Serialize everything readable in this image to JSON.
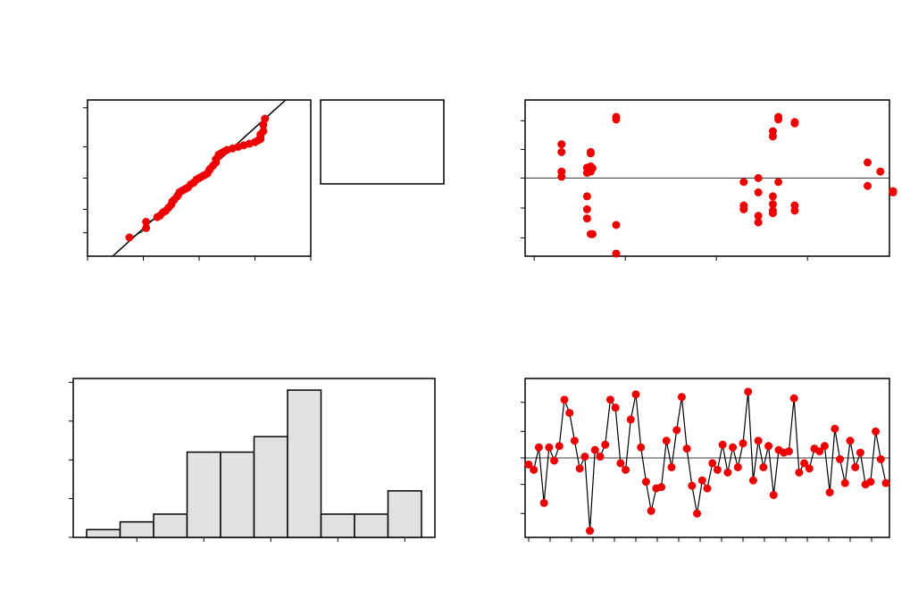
{
  "colors": {
    "points": "#ee0000",
    "bars": "#e1e1e1",
    "lines": "#000000"
  },
  "chart_data": [
    {
      "id": "probability-plot",
      "type": "scatter",
      "xlim": [
        0,
        4
      ],
      "ylim": [
        0,
        10
      ],
      "x_ticks": [
        0,
        1,
        2,
        3,
        4
      ],
      "y_ticks": [
        1.5,
        3,
        5,
        7,
        9.5
      ],
      "fit_line": [
        [
          0.45,
          0
        ],
        [
          3.55,
          10
        ]
      ],
      "points": [
        [
          0.75,
          1.2
        ],
        [
          1.05,
          1.8
        ],
        [
          1.05,
          2.2
        ],
        [
          1.25,
          2.5
        ],
        [
          1.3,
          2.6
        ],
        [
          1.35,
          2.8
        ],
        [
          1.4,
          2.9
        ],
        [
          1.45,
          3.1
        ],
        [
          1.5,
          3.3
        ],
        [
          1.52,
          3.5
        ],
        [
          1.55,
          3.6
        ],
        [
          1.6,
          3.8
        ],
        [
          1.62,
          3.9
        ],
        [
          1.65,
          4.1
        ],
        [
          1.7,
          4.2
        ],
        [
          1.75,
          4.3
        ],
        [
          1.8,
          4.4
        ],
        [
          1.85,
          4.6
        ],
        [
          1.9,
          4.7
        ],
        [
          1.95,
          4.9
        ],
        [
          2.0,
          5.0
        ],
        [
          2.05,
          5.1
        ],
        [
          2.1,
          5.2
        ],
        [
          2.15,
          5.3
        ],
        [
          2.18,
          5.5
        ],
        [
          2.2,
          5.6
        ],
        [
          2.25,
          5.8
        ],
        [
          2.3,
          6.0
        ],
        [
          2.3,
          6.2
        ],
        [
          2.35,
          6.4
        ],
        [
          2.35,
          6.5
        ],
        [
          2.4,
          6.6
        ],
        [
          2.45,
          6.7
        ],
        [
          2.5,
          6.8
        ],
        [
          2.6,
          6.9
        ],
        [
          2.7,
          7.0
        ],
        [
          2.8,
          7.1
        ],
        [
          2.9,
          7.2
        ],
        [
          3.0,
          7.3
        ],
        [
          3.05,
          7.4
        ],
        [
          3.1,
          7.5
        ],
        [
          3.1,
          7.7
        ],
        [
          3.1,
          7.8
        ],
        [
          3.15,
          8.0
        ],
        [
          3.15,
          8.4
        ],
        [
          3.18,
          8.8
        ]
      ]
    },
    {
      "id": "legend-box",
      "type": "table",
      "entries": []
    },
    {
      "id": "residuals-vs-fits",
      "type": "scatter",
      "xlim": [
        0,
        10
      ],
      "ylim": [
        -3,
        3
      ],
      "x_ticks": [
        0.25,
        2.75,
        5.25,
        7.75
      ],
      "y_ticks": [
        -2.3,
        -1.15,
        0,
        1.1,
        2.2
      ],
      "reference_y": 0,
      "points": [
        [
          1.0,
          1.3
        ],
        [
          1.0,
          1.0
        ],
        [
          1.0,
          0.25
        ],
        [
          1.0,
          0.05
        ],
        [
          1.7,
          0.4
        ],
        [
          1.7,
          0.2
        ],
        [
          1.75,
          0.35
        ],
        [
          1.8,
          0.45
        ],
        [
          1.8,
          0.25
        ],
        [
          1.85,
          0.38
        ],
        [
          1.8,
          1.0
        ],
        [
          1.8,
          0.95
        ],
        [
          1.7,
          -0.7
        ],
        [
          1.7,
          -1.2
        ],
        [
          1.7,
          -1.55
        ],
        [
          1.8,
          -2.15
        ],
        [
          1.85,
          -2.15
        ],
        [
          2.5,
          2.35
        ],
        [
          2.5,
          2.25
        ],
        [
          2.5,
          -1.8
        ],
        [
          2.5,
          -2.9
        ],
        [
          6.0,
          -0.15
        ],
        [
          6.0,
          -1.05
        ],
        [
          6.0,
          -1.2
        ],
        [
          6.4,
          0.0
        ],
        [
          6.4,
          -0.55
        ],
        [
          6.4,
          -1.45
        ],
        [
          6.4,
          -1.7
        ],
        [
          6.8,
          -0.7
        ],
        [
          6.8,
          -1.0
        ],
        [
          6.8,
          -1.25
        ],
        [
          6.8,
          -1.35
        ],
        [
          6.8,
          1.8
        ],
        [
          6.8,
          1.6
        ],
        [
          6.95,
          -0.15
        ],
        [
          6.95,
          2.35
        ],
        [
          6.95,
          2.25
        ],
        [
          7.4,
          2.15
        ],
        [
          7.4,
          2.1
        ],
        [
          7.4,
          -1.05
        ],
        [
          7.4,
          -1.25
        ],
        [
          9.4,
          0.6
        ],
        [
          9.4,
          -0.3
        ],
        [
          9.75,
          0.25
        ],
        [
          10.1,
          -0.5
        ],
        [
          10.1,
          -0.55
        ]
      ]
    },
    {
      "id": "histogram",
      "type": "bar",
      "bins": [
        [
          0.0,
          0.5,
          0.2
        ],
        [
          0.5,
          1.0,
          0.4
        ],
        [
          1.0,
          1.5,
          0.6
        ],
        [
          1.5,
          2.0,
          2.2
        ],
        [
          2.0,
          2.5,
          2.2
        ],
        [
          2.5,
          3.0,
          2.6
        ],
        [
          3.0,
          3.5,
          3.8
        ],
        [
          3.5,
          4.0,
          0.6
        ],
        [
          4.0,
          4.5,
          0.6
        ],
        [
          4.5,
          5.0,
          1.2
        ]
      ],
      "xlim": [
        -0.2,
        5.2
      ],
      "ylim": [
        0,
        4.1
      ],
      "x_ticks": [
        0.75,
        1.75,
        2.75,
        3.75,
        4.75
      ],
      "y_ticks": [
        0,
        1,
        2,
        3,
        4
      ]
    },
    {
      "id": "residuals-vs-order",
      "type": "line",
      "xlim": [
        -0.5,
        50.5
      ],
      "ylim": [
        -3,
        3
      ],
      "x_ticks": [
        0,
        3,
        6,
        9,
        12,
        15,
        18,
        21,
        24,
        27,
        30,
        33,
        36,
        39,
        42,
        45,
        48
      ],
      "y_ticks": [
        -2.1,
        -1.0,
        0,
        1.0,
        2.1
      ],
      "reference_y": 0,
      "values": [
        -0.25,
        -0.45,
        0.4,
        -1.7,
        0.4,
        -0.1,
        0.45,
        2.2,
        1.7,
        0.65,
        -0.4,
        0.05,
        -2.75,
        0.3,
        0.05,
        0.5,
        2.2,
        1.9,
        -0.2,
        -0.45,
        1.45,
        2.4,
        0.4,
        -0.9,
        -2.0,
        -1.15,
        -1.1,
        0.65,
        -0.35,
        1.05,
        2.3,
        0.35,
        -1.05,
        -2.1,
        -0.85,
        -1.15,
        -0.2,
        -0.45,
        0.5,
        -0.55,
        0.4,
        -0.35,
        0.55,
        2.5,
        -0.85,
        0.65,
        -0.35,
        0.45,
        -1.4,
        0.3,
        0.2,
        0.25,
        2.25,
        -0.55,
        -0.2,
        -0.4,
        0.35,
        0.25,
        0.45,
        -1.3,
        1.1,
        -0.05,
        -0.95,
        0.65,
        -0.35,
        0.2,
        -1.0,
        -0.9,
        1.0,
        -0.05,
        -0.95
      ]
    }
  ]
}
